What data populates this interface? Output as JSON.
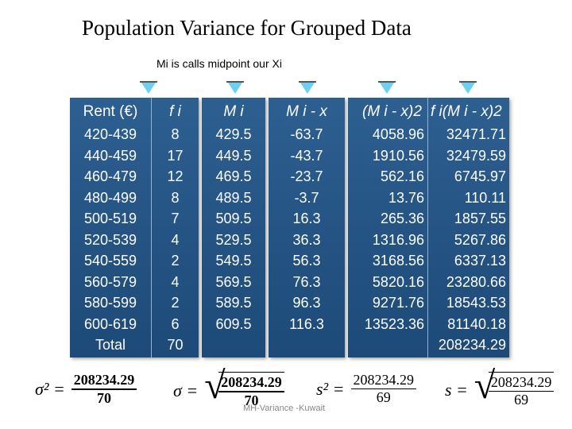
{
  "title": "Population Variance for Grouped Data",
  "subtitle": "Mi is calls midpoint our Xi",
  "headers": {
    "rent": "Rent (€)",
    "fi": "f i",
    "mi": "M i",
    "mi_minus_x": "M i - x",
    "mi_minus_x_sq": "(M i - x)2",
    "fi_mi_minus_x_sq": "f i(M i - x)2"
  },
  "rows": [
    {
      "rent": "420-439",
      "fi": "8",
      "mi": "429.5",
      "dev": "-63.7",
      "dev_sq": "4058.96",
      "f_dev_sq": "32471.71"
    },
    {
      "rent": "440-459",
      "fi": "17",
      "mi": "449.5",
      "dev": "-43.7",
      "dev_sq": "1910.56",
      "f_dev_sq": "32479.59"
    },
    {
      "rent": "460-479",
      "fi": "12",
      "mi": "469.5",
      "dev": "-23.7",
      "dev_sq": "562.16",
      "f_dev_sq": "6745.97"
    },
    {
      "rent": "480-499",
      "fi": "8",
      "mi": "489.5",
      "dev": "-3.7",
      "dev_sq": "13.76",
      "f_dev_sq": "110.11"
    },
    {
      "rent": "500-519",
      "fi": "7",
      "mi": "509.5",
      "dev": "16.3",
      "dev_sq": "265.36",
      "f_dev_sq": "1857.55"
    },
    {
      "rent": "520-539",
      "fi": "4",
      "mi": "529.5",
      "dev": "36.3",
      "dev_sq": "1316.96",
      "f_dev_sq": "5267.86"
    },
    {
      "rent": "540-559",
      "fi": "2",
      "mi": "549.5",
      "dev": "56.3",
      "dev_sq": "3168.56",
      "f_dev_sq": "6337.13"
    },
    {
      "rent": "560-579",
      "fi": "4",
      "mi": "569.5",
      "dev": "76.3",
      "dev_sq": "5820.16",
      "f_dev_sq": "23280.66"
    },
    {
      "rent": "580-599",
      "fi": "2",
      "mi": "589.5",
      "dev": "96.3",
      "dev_sq": "9271.76",
      "f_dev_sq": "18543.53"
    },
    {
      "rent": "600-619",
      "fi": "6",
      "mi": "609.5",
      "dev": "116.3",
      "dev_sq": "13523.36",
      "f_dev_sq": "81140.18"
    }
  ],
  "total": {
    "label": "Total",
    "fi": "70",
    "f_dev_sq": "208234.29"
  },
  "formulas": {
    "pop_var": {
      "lhs": "σ² =",
      "num": "208234.29",
      "den": "70"
    },
    "pop_sd": {
      "lhs": "σ =",
      "num": "208234.29",
      "den": "70"
    },
    "sample_var": {
      "lhs": "s² =",
      "num": "208234.29",
      "den": "69"
    },
    "sample_sd": {
      "lhs": "s =",
      "num": "208234.29",
      "den": "69"
    }
  },
  "footer": "MH-Variance -Kuwait",
  "colors": {
    "panel": "#1d4a78",
    "arrow": "#6fcff0",
    "text": "#ffffff"
  }
}
